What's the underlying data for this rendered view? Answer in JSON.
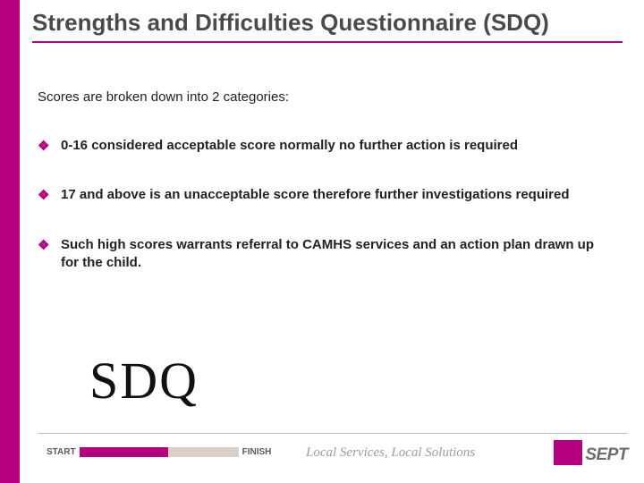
{
  "colors": {
    "accent": "#b5007f",
    "title_text": "#4a4a4a",
    "body_text": "#222222",
    "tagline_text": "#9c9c9c",
    "progress_track": "#d9d0c7",
    "footer_rule": "#bfbfbf",
    "background": "#ffffff"
  },
  "title": "Strengths and Difficulties Questionnaire (SDQ)",
  "intro": "Scores are broken down into 2 categories:",
  "bullets": [
    " 0-16 considered acceptable score normally no further action is required",
    "17 and above is an unacceptable score therefore further investigations required",
    "Such high scores warrants referral to CAMHS services and an action plan drawn up for the child."
  ],
  "logo_text": "SDQ",
  "footer": {
    "start_label": "START",
    "finish_label": "FINISH",
    "progress_percent": 56,
    "tagline": "Local Services, Local Solutions",
    "brand": "SEPT"
  }
}
